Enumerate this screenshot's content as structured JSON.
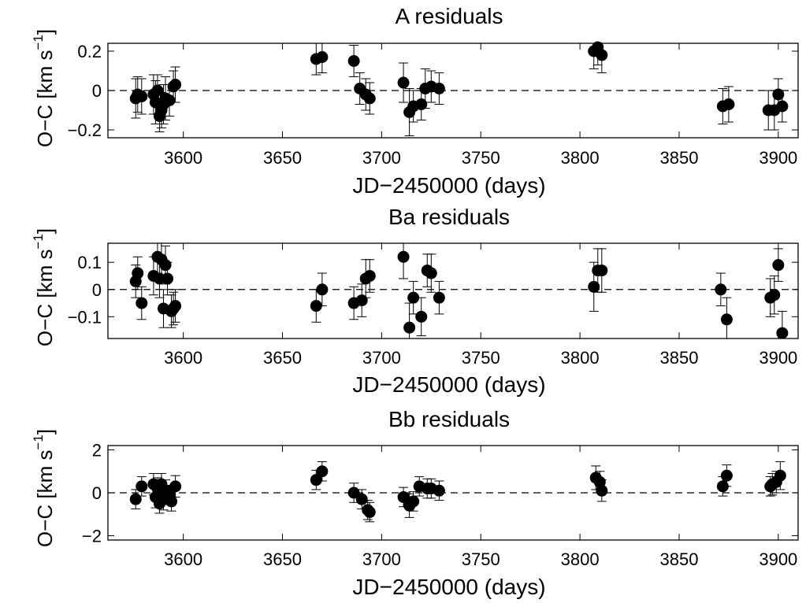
{
  "chart_data": [
    {
      "type": "scatter",
      "title": "A residuals",
      "xlabel": "JD−2450000 (days)",
      "ylabel": {
        "main": "O−C [km s",
        "sup": "−1",
        "close": "]"
      },
      "xlim": [
        3562,
        3910
      ],
      "ylim": [
        -0.24,
        0.24
      ],
      "xticks": [
        3600,
        3650,
        3700,
        3750,
        3800,
        3850,
        3900
      ],
      "yticks": [
        -0.2,
        0,
        0.2
      ],
      "ytick_labels": [
        "−0.2",
        "0",
        "0.2"
      ],
      "zero_line": true,
      "points": [
        {
          "x": 3576,
          "y": -0.04,
          "err": 0.1
        },
        {
          "x": 3577,
          "y": -0.02,
          "err": 0.09
        },
        {
          "x": 3579,
          "y": -0.03,
          "err": 0.09
        },
        {
          "x": 3585,
          "y": -0.02,
          "err": 0.1
        },
        {
          "x": 3586,
          "y": -0.06,
          "err": 0.11
        },
        {
          "x": 3587,
          "y": 0.0,
          "err": 0.08
        },
        {
          "x": 3588,
          "y": -0.13,
          "err": 0.08
        },
        {
          "x": 3589,
          "y": -0.1,
          "err": 0.09
        },
        {
          "x": 3590,
          "y": -0.07,
          "err": 0.1
        },
        {
          "x": 3591,
          "y": -0.04,
          "err": 0.11
        },
        {
          "x": 3593,
          "y": -0.05,
          "err": 0.08
        },
        {
          "x": 3595,
          "y": 0.02,
          "err": 0.08
        },
        {
          "x": 3596,
          "y": 0.03,
          "err": 0.09
        },
        {
          "x": 3667,
          "y": 0.16,
          "err": 0.08
        },
        {
          "x": 3670,
          "y": 0.17,
          "err": 0.08
        },
        {
          "x": 3686,
          "y": 0.15,
          "err": 0.08
        },
        {
          "x": 3689,
          "y": 0.01,
          "err": 0.08
        },
        {
          "x": 3692,
          "y": -0.02,
          "err": 0.08
        },
        {
          "x": 3694,
          "y": -0.04,
          "err": 0.08
        },
        {
          "x": 3711,
          "y": 0.04,
          "err": 0.1
        },
        {
          "x": 3714,
          "y": -0.11,
          "err": 0.12
        },
        {
          "x": 3716,
          "y": -0.08,
          "err": 0.08
        },
        {
          "x": 3720,
          "y": -0.07,
          "err": 0.08
        },
        {
          "x": 3722,
          "y": 0.01,
          "err": 0.1
        },
        {
          "x": 3725,
          "y": 0.02,
          "err": 0.08
        },
        {
          "x": 3729,
          "y": 0.01,
          "err": 0.08
        },
        {
          "x": 3807,
          "y": 0.2,
          "err": 0.09
        },
        {
          "x": 3809,
          "y": 0.22,
          "err": 0.09
        },
        {
          "x": 3811,
          "y": 0.18,
          "err": 0.09
        },
        {
          "x": 3872,
          "y": -0.08,
          "err": 0.09
        },
        {
          "x": 3875,
          "y": -0.07,
          "err": 0.09
        },
        {
          "x": 3895,
          "y": -0.1,
          "err": 0.1
        },
        {
          "x": 3898,
          "y": -0.1,
          "err": 0.1
        },
        {
          "x": 3900,
          "y": -0.02,
          "err": 0.08
        },
        {
          "x": 3902,
          "y": -0.08,
          "err": 0.08
        }
      ]
    },
    {
      "type": "scatter",
      "title": "Ba residuals",
      "xlabel": "JD−2450000 (days)",
      "ylabel": {
        "main": "O−C [km s",
        "sup": "−1",
        "close": "]"
      },
      "xlim": [
        3562,
        3910
      ],
      "ylim": [
        -0.18,
        0.17
      ],
      "xticks": [
        3600,
        3650,
        3700,
        3750,
        3800,
        3850,
        3900
      ],
      "yticks": [
        -0.1,
        0,
        0.1
      ],
      "ytick_labels": [
        "−0.1",
        "0",
        "0.1"
      ],
      "zero_line": true,
      "points": [
        {
          "x": 3576,
          "y": 0.03,
          "err": 0.06
        },
        {
          "x": 3577,
          "y": 0.06,
          "err": 0.06
        },
        {
          "x": 3579,
          "y": -0.05,
          "err": 0.06
        },
        {
          "x": 3585,
          "y": 0.05,
          "err": 0.07
        },
        {
          "x": 3587,
          "y": 0.12,
          "err": 0.06
        },
        {
          "x": 3588,
          "y": 0.04,
          "err": 0.07
        },
        {
          "x": 3589,
          "y": 0.11,
          "err": 0.06
        },
        {
          "x": 3590,
          "y": -0.07,
          "err": 0.07
        },
        {
          "x": 3591,
          "y": 0.09,
          "err": 0.07
        },
        {
          "x": 3592,
          "y": 0.04,
          "err": 0.06
        },
        {
          "x": 3594,
          "y": -0.08,
          "err": 0.06
        },
        {
          "x": 3595,
          "y": -0.07,
          "err": 0.06
        },
        {
          "x": 3596,
          "y": -0.06,
          "err": 0.06
        },
        {
          "x": 3667,
          "y": -0.06,
          "err": 0.06
        },
        {
          "x": 3670,
          "y": 0.0,
          "err": 0.06
        },
        {
          "x": 3686,
          "y": -0.05,
          "err": 0.06
        },
        {
          "x": 3690,
          "y": -0.04,
          "err": 0.06
        },
        {
          "x": 3692,
          "y": 0.04,
          "err": 0.07
        },
        {
          "x": 3694,
          "y": 0.05,
          "err": 0.06
        },
        {
          "x": 3711,
          "y": 0.12,
          "err": 0.08
        },
        {
          "x": 3714,
          "y": -0.14,
          "err": 0.09
        },
        {
          "x": 3716,
          "y": -0.03,
          "err": 0.06
        },
        {
          "x": 3720,
          "y": -0.1,
          "err": 0.07
        },
        {
          "x": 3723,
          "y": 0.07,
          "err": 0.06
        },
        {
          "x": 3725,
          "y": 0.06,
          "err": 0.07
        },
        {
          "x": 3729,
          "y": -0.03,
          "err": 0.06
        },
        {
          "x": 3807,
          "y": 0.01,
          "err": 0.09
        },
        {
          "x": 3809,
          "y": 0.07,
          "err": 0.08
        },
        {
          "x": 3811,
          "y": 0.07,
          "err": 0.08
        },
        {
          "x": 3871,
          "y": 0.0,
          "err": 0.06
        },
        {
          "x": 3874,
          "y": -0.11,
          "err": 0.08
        },
        {
          "x": 3896,
          "y": -0.03,
          "err": 0.07
        },
        {
          "x": 3898,
          "y": -0.02,
          "err": 0.07
        },
        {
          "x": 3900,
          "y": 0.09,
          "err": 0.06
        },
        {
          "x": 3902,
          "y": -0.16,
          "err": 0.08
        }
      ]
    },
    {
      "type": "scatter",
      "title": "Bb residuals",
      "xlabel": "JD−2450000 (days)",
      "ylabel": {
        "main": "O−C [km s",
        "sup": "−1",
        "close": "]"
      },
      "xlim": [
        3562,
        3910
      ],
      "ylim": [
        -2.2,
        2.2
      ],
      "xticks": [
        3600,
        3650,
        3700,
        3750,
        3800,
        3850,
        3900
      ],
      "yticks": [
        -2,
        0,
        2
      ],
      "ytick_labels": [
        "−2",
        "0",
        "2"
      ],
      "zero_line": true,
      "points": [
        {
          "x": 3576,
          "y": -0.3,
          "err": 0.45
        },
        {
          "x": 3579,
          "y": 0.3,
          "err": 0.45
        },
        {
          "x": 3585,
          "y": 0.4,
          "err": 0.5
        },
        {
          "x": 3586,
          "y": -0.2,
          "err": 0.5
        },
        {
          "x": 3587,
          "y": 0.2,
          "err": 0.5
        },
        {
          "x": 3588,
          "y": -0.5,
          "err": 0.45
        },
        {
          "x": 3589,
          "y": 0.4,
          "err": 0.5
        },
        {
          "x": 3590,
          "y": -0.3,
          "err": 0.5
        },
        {
          "x": 3591,
          "y": 0.1,
          "err": 0.5
        },
        {
          "x": 3593,
          "y": -0.1,
          "err": 0.45
        },
        {
          "x": 3594,
          "y": -0.4,
          "err": 0.45
        },
        {
          "x": 3596,
          "y": 0.3,
          "err": 0.5
        },
        {
          "x": 3667,
          "y": 0.6,
          "err": 0.45
        },
        {
          "x": 3670,
          "y": 1.0,
          "err": 0.45
        },
        {
          "x": 3686,
          "y": 0.0,
          "err": 0.45
        },
        {
          "x": 3690,
          "y": -0.3,
          "err": 0.45
        },
        {
          "x": 3693,
          "y": -0.8,
          "err": 0.45
        },
        {
          "x": 3694,
          "y": -0.9,
          "err": 0.45
        },
        {
          "x": 3711,
          "y": -0.2,
          "err": 0.45
        },
        {
          "x": 3714,
          "y": -0.6,
          "err": 0.55
        },
        {
          "x": 3716,
          "y": -0.4,
          "err": 0.45
        },
        {
          "x": 3719,
          "y": 0.3,
          "err": 0.45
        },
        {
          "x": 3723,
          "y": 0.2,
          "err": 0.45
        },
        {
          "x": 3725,
          "y": 0.2,
          "err": 0.45
        },
        {
          "x": 3729,
          "y": 0.1,
          "err": 0.45
        },
        {
          "x": 3808,
          "y": 0.7,
          "err": 0.55
        },
        {
          "x": 3810,
          "y": 0.5,
          "err": 0.5
        },
        {
          "x": 3811,
          "y": 0.1,
          "err": 0.5
        },
        {
          "x": 3872,
          "y": 0.3,
          "err": 0.45
        },
        {
          "x": 3874,
          "y": 0.8,
          "err": 0.5
        },
        {
          "x": 3896,
          "y": 0.3,
          "err": 0.45
        },
        {
          "x": 3897,
          "y": 0.4,
          "err": 0.5
        },
        {
          "x": 3899,
          "y": 0.5,
          "err": 0.5
        },
        {
          "x": 3901,
          "y": 0.8,
          "err": 0.65
        }
      ]
    }
  ]
}
